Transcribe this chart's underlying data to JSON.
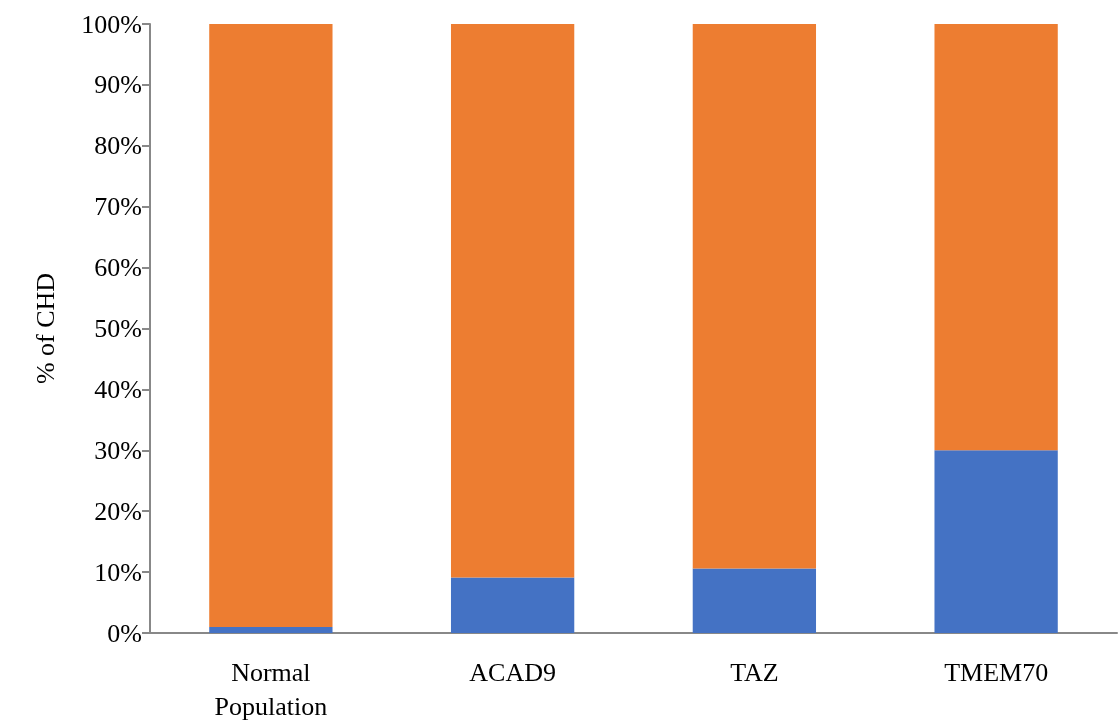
{
  "chart_data": {
    "type": "bar",
    "ylabel": "% of CHD",
    "categories": [
      "Normal Population",
      "ACAD9",
      "TAZ",
      "TMEM70"
    ],
    "stacked": true,
    "series": [
      {
        "color": "#4472c4",
        "values": [
          1,
          9.1,
          10.6,
          30
        ]
      },
      {
        "color": "#ed7d31",
        "values": [
          99,
          90.9,
          89.4,
          70
        ]
      }
    ],
    "ylim": [
      0,
      100
    ],
    "yticks": [
      {
        "value": 0,
        "label": "0%"
      },
      {
        "value": 10,
        "label": "10%"
      },
      {
        "value": 20,
        "label": "20%"
      },
      {
        "value": 30,
        "label": "30%"
      },
      {
        "value": 40,
        "label": "40%"
      },
      {
        "value": 50,
        "label": "50%"
      },
      {
        "value": 60,
        "label": "60%"
      },
      {
        "value": 70,
        "label": "70%"
      },
      {
        "value": 80,
        "label": "80%"
      },
      {
        "value": 90,
        "label": "90%"
      },
      {
        "value": 100,
        "label": "100%"
      }
    ],
    "grid": false
  }
}
